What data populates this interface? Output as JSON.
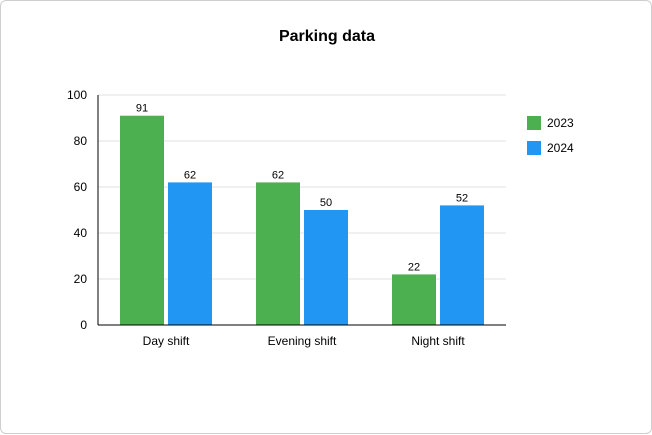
{
  "chart_data": {
    "type": "bar",
    "title": "Parking data",
    "xlabel": "",
    "ylabel": "",
    "categories": [
      "Day shift",
      "Evening shift",
      "Night shift"
    ],
    "series": [
      {
        "name": "2023",
        "values": [
          91,
          62,
          22
        ],
        "color": "#4caf50"
      },
      {
        "name": "2024",
        "values": [
          62,
          50,
          52
        ],
        "color": "#2196f3"
      }
    ],
    "ylim": [
      0,
      100
    ],
    "yticks": [
      0,
      20,
      40,
      60,
      80,
      100
    ],
    "grid": true,
    "legend": "right",
    "data_labels": true
  }
}
